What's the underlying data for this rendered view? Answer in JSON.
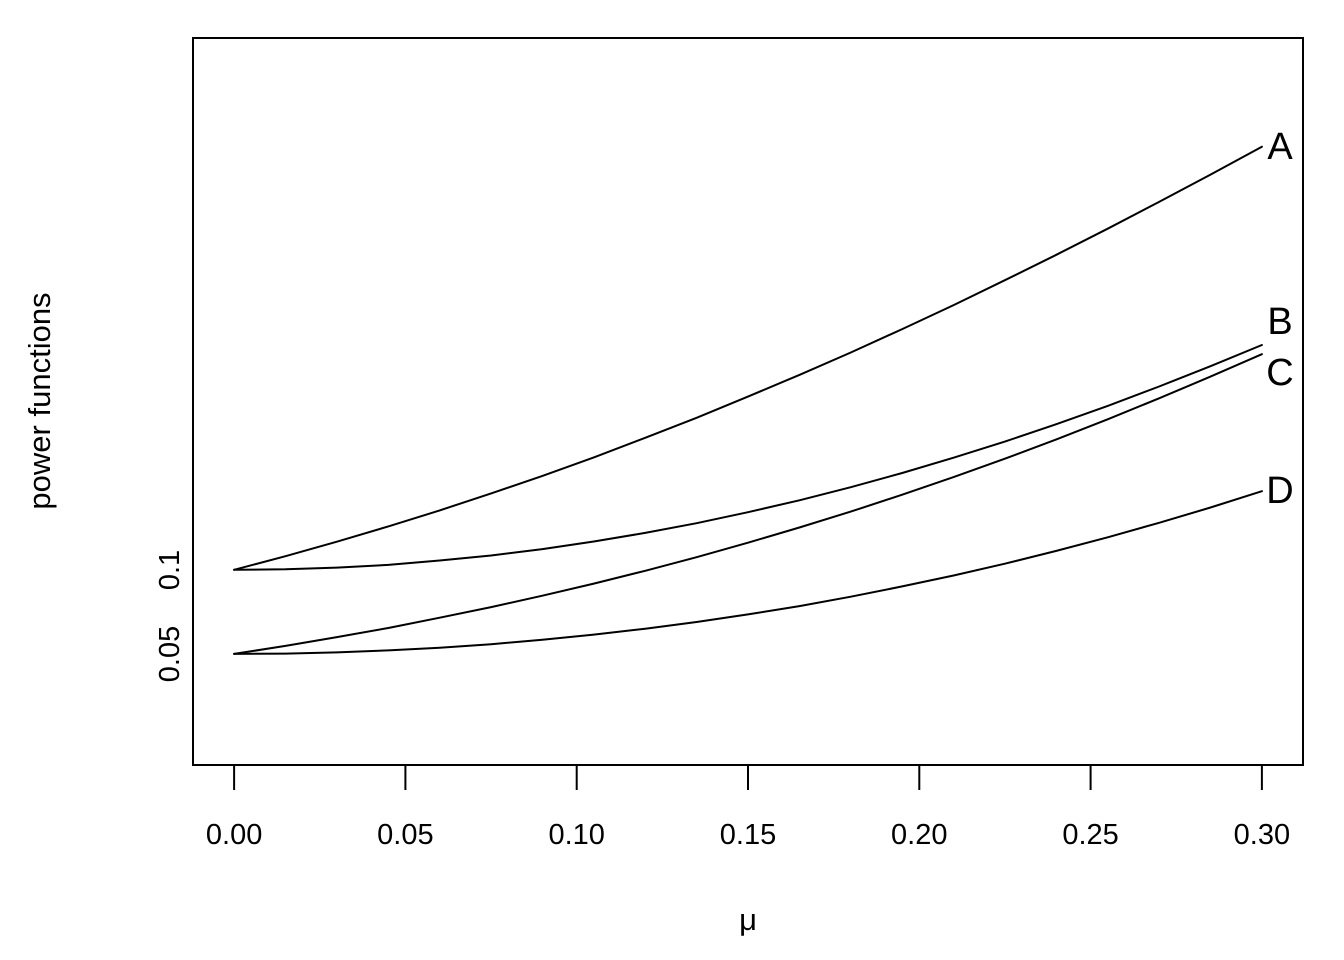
{
  "chart_data": {
    "type": "line",
    "title": "",
    "xlabel": "μ",
    "ylabel": "power functions",
    "grid": false,
    "background": "#ffffff",
    "line_color": "#000000",
    "text_color": "#000000",
    "xlim": [
      -0.012,
      0.312
    ],
    "ylim": [
      -0.016,
      0.416
    ],
    "x_ticks": {
      "values": [
        0.0,
        0.05,
        0.1,
        0.15,
        0.2,
        0.25,
        0.3
      ],
      "labels": [
        "0.00",
        "0.05",
        "0.10",
        "0.15",
        "0.20",
        "0.25",
        "0.30"
      ]
    },
    "y_ticks": {
      "values": [
        0.05,
        0.1
      ],
      "labels": [
        "0.05",
        "0.1"
      ]
    },
    "x": [
      0.0,
      0.015,
      0.03,
      0.045,
      0.06,
      0.075,
      0.09,
      0.105,
      0.12,
      0.135,
      0.15,
      0.165,
      0.18,
      0.195,
      0.21,
      0.225,
      0.24,
      0.255,
      0.27,
      0.285,
      0.3
    ],
    "series": [
      {
        "name": "A",
        "label": "A",
        "label_x": 0.3053,
        "label_y": 0.3514,
        "values": [
          0.1,
          0.1081,
          0.1167,
          0.1258,
          0.1353,
          0.1454,
          0.1558,
          0.1668,
          0.1784,
          0.1903,
          0.2029,
          0.2158,
          0.2291,
          0.243,
          0.2573,
          0.2721,
          0.2872,
          0.3027,
          0.3186,
          0.3348,
          0.3514
        ]
      },
      {
        "name": "B",
        "label": "B",
        "label_x": 0.3053,
        "label_y": 0.2475,
        "values": [
          0.1,
          0.1003,
          0.1013,
          0.1029,
          0.1055,
          0.1085,
          0.1123,
          0.1168,
          0.1219,
          0.1277,
          0.1342,
          0.1413,
          0.1491,
          0.1575,
          0.1666,
          0.1762,
          0.1865,
          0.1974,
          0.2089,
          0.221,
          0.2336
        ]
      },
      {
        "name": "C",
        "label": "C",
        "label_x": 0.3053,
        "label_y": 0.2172,
        "values": [
          0.05,
          0.0548,
          0.06,
          0.0654,
          0.0715,
          0.0778,
          0.0846,
          0.0918,
          0.0994,
          0.1075,
          0.1161,
          0.1251,
          0.1346,
          0.1446,
          0.1551,
          0.166,
          0.1775,
          0.1894,
          0.2019,
          0.2148,
          0.2281
        ]
      },
      {
        "name": "D",
        "label": "D",
        "label_x": 0.3053,
        "label_y": 0.1467,
        "values": [
          0.05,
          0.0502,
          0.0509,
          0.0521,
          0.0537,
          0.0558,
          0.0584,
          0.0615,
          0.065,
          0.069,
          0.0735,
          0.0784,
          0.084,
          0.0901,
          0.0966,
          0.1036,
          0.1112,
          0.1193,
          0.1279,
          0.137,
          0.1467
        ]
      }
    ]
  }
}
